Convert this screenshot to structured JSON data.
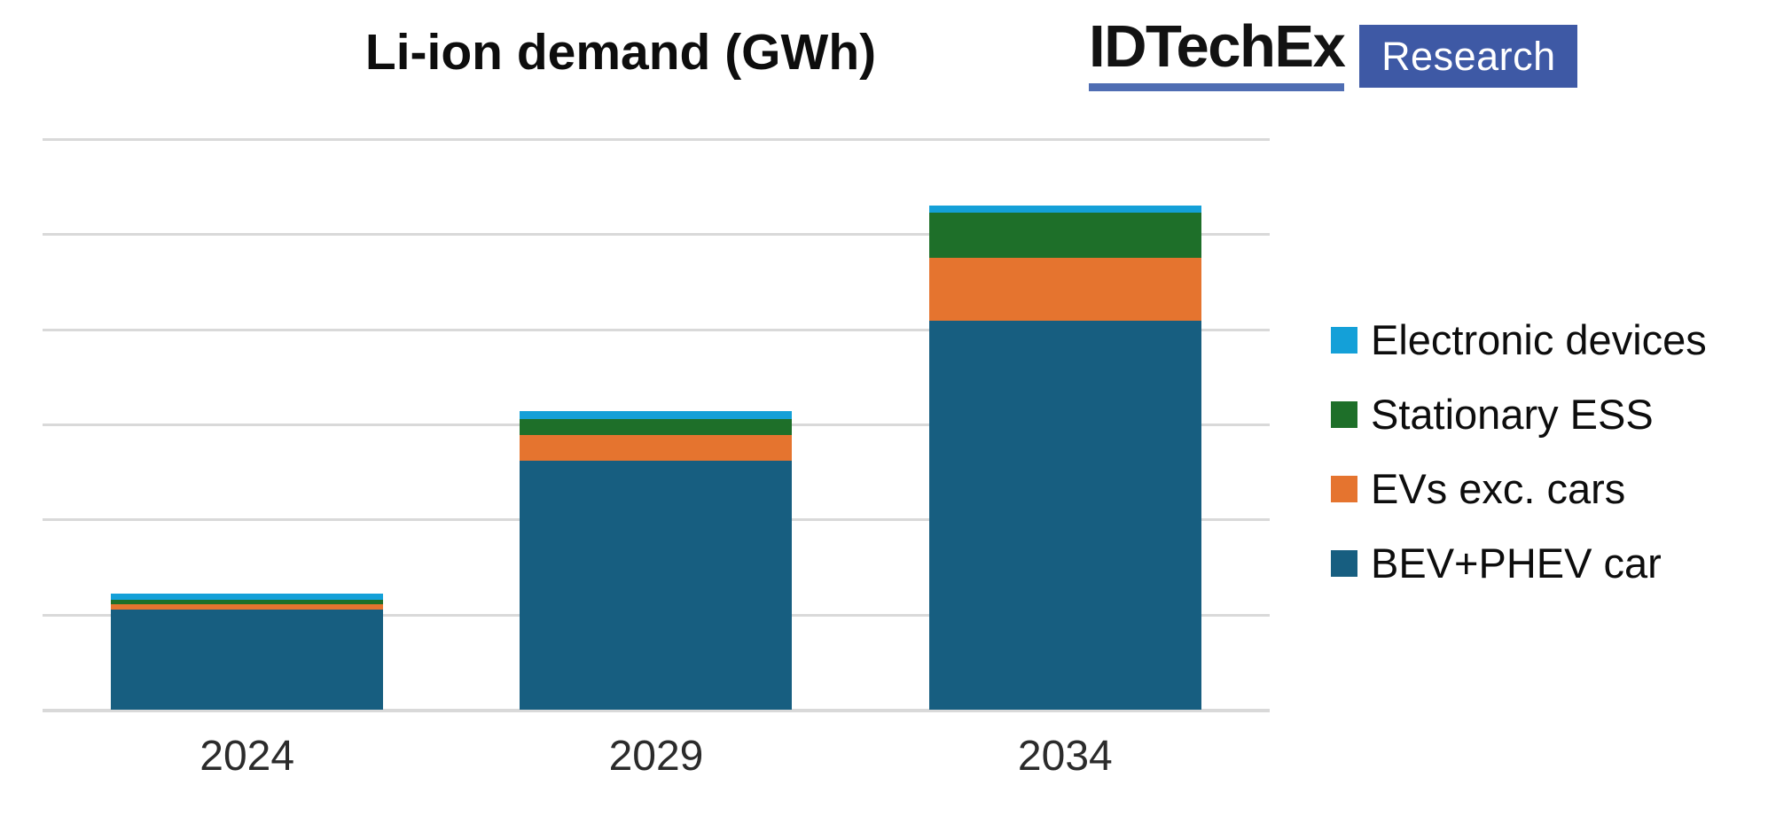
{
  "title": {
    "text": "Li-ion demand (GWh)"
  },
  "logo": {
    "wordmark": "IDTechEx",
    "badge": "Research",
    "wordmark_color": "#121212",
    "underline_color": "#4F6DB3",
    "badge_bg": "#3E59A5",
    "badge_text_color": "#FFFFFF"
  },
  "chart_data": {
    "type": "bar",
    "stacked": true,
    "title": "Li-ion demand (GWh)",
    "unit": "GWh",
    "categories": [
      "2024",
      "2029",
      "2034"
    ],
    "series": [
      {
        "name": "BEV+PHEV car",
        "color": "#175E80",
        "values": [
          525,
          1310,
          2045
        ]
      },
      {
        "name": "EVs exc. cars",
        "color": "#E5742F",
        "values": [
          30,
          135,
          330
        ]
      },
      {
        "name": "Stationary ESS",
        "color": "#1E6F29",
        "values": [
          25,
          85,
          240
        ]
      },
      {
        "name": "Electronic devices",
        "color": "#14A0D8",
        "values": [
          30,
          40,
          35
        ]
      }
    ],
    "totals": [
      610,
      1570,
      2650
    ],
    "ylim": [
      0,
      3000
    ],
    "y_gridline_interval": 500,
    "y_gridline_count": 7,
    "y_axis_labels_visible": false,
    "grid": "horizontal",
    "gridline_color": "#D9D9D9",
    "legend_position": "right",
    "legend_order_top_to_bottom": [
      "Electronic devices",
      "Stationary ESS",
      "EVs exc. cars",
      "BEV+PHEV car"
    ]
  },
  "legend": {
    "items": [
      {
        "label": "Electronic devices",
        "color": "#14A0D8"
      },
      {
        "label": "Stationary ESS",
        "color": "#1E6F29"
      },
      {
        "label": "EVs exc. cars",
        "color": "#E5742F"
      },
      {
        "label": "BEV+PHEV car",
        "color": "#175E80"
      }
    ]
  }
}
